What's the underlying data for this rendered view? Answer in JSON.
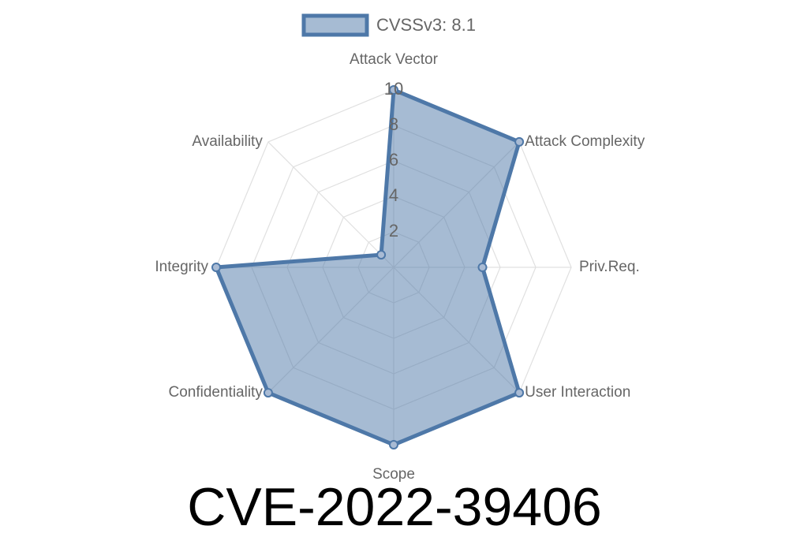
{
  "chart_data": {
    "type": "radar",
    "title": "CVE-2022-39406",
    "categories": [
      "Attack Vector",
      "Attack Complexity",
      "Priv.Req.",
      "User Interaction",
      "Scope",
      "Confidentiality",
      "Integrity",
      "Availability"
    ],
    "series": [
      {
        "name": "CVSSv3: 8.1",
        "color": "#4e78a8",
        "values": [
          10,
          10,
          5,
          10,
          10,
          10,
          10,
          1
        ]
      }
    ],
    "rlim": [
      0,
      10
    ],
    "rticks": [
      2,
      4,
      6,
      8,
      10
    ],
    "grid": true,
    "legend": "top"
  }
}
